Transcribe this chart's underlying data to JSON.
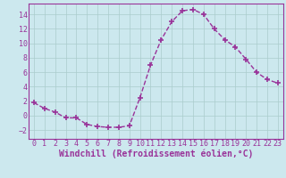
{
  "x": [
    0,
    1,
    2,
    3,
    4,
    5,
    6,
    7,
    8,
    9,
    10,
    11,
    12,
    13,
    14,
    15,
    16,
    17,
    18,
    19,
    20,
    21,
    22,
    23
  ],
  "y": [
    1.8,
    1.0,
    0.5,
    -0.3,
    -0.3,
    -1.2,
    -1.5,
    -1.6,
    -1.6,
    -1.4,
    2.5,
    7.0,
    10.5,
    13.0,
    14.5,
    14.7,
    14.0,
    12.0,
    10.5,
    9.5,
    7.8,
    6.0,
    5.0,
    4.5
  ],
  "line_color": "#993399",
  "marker": "+",
  "xlabel": "Windchill (Refroidissement éolien,°C)",
  "xlim": [
    -0.5,
    23.5
  ],
  "ylim": [
    -3.2,
    15.5
  ],
  "yticks": [
    -2,
    0,
    2,
    4,
    6,
    8,
    10,
    12,
    14
  ],
  "xticks": [
    0,
    1,
    2,
    3,
    4,
    5,
    6,
    7,
    8,
    9,
    10,
    11,
    12,
    13,
    14,
    15,
    16,
    17,
    18,
    19,
    20,
    21,
    22,
    23
  ],
  "bg_color": "#cce8ee",
  "grid_color": "#aacccc",
  "font_color": "#993399",
  "xlabel_fontsize": 7,
  "tick_fontsize": 6,
  "linewidth": 1.0,
  "markersize": 5,
  "markeredgewidth": 1.2
}
